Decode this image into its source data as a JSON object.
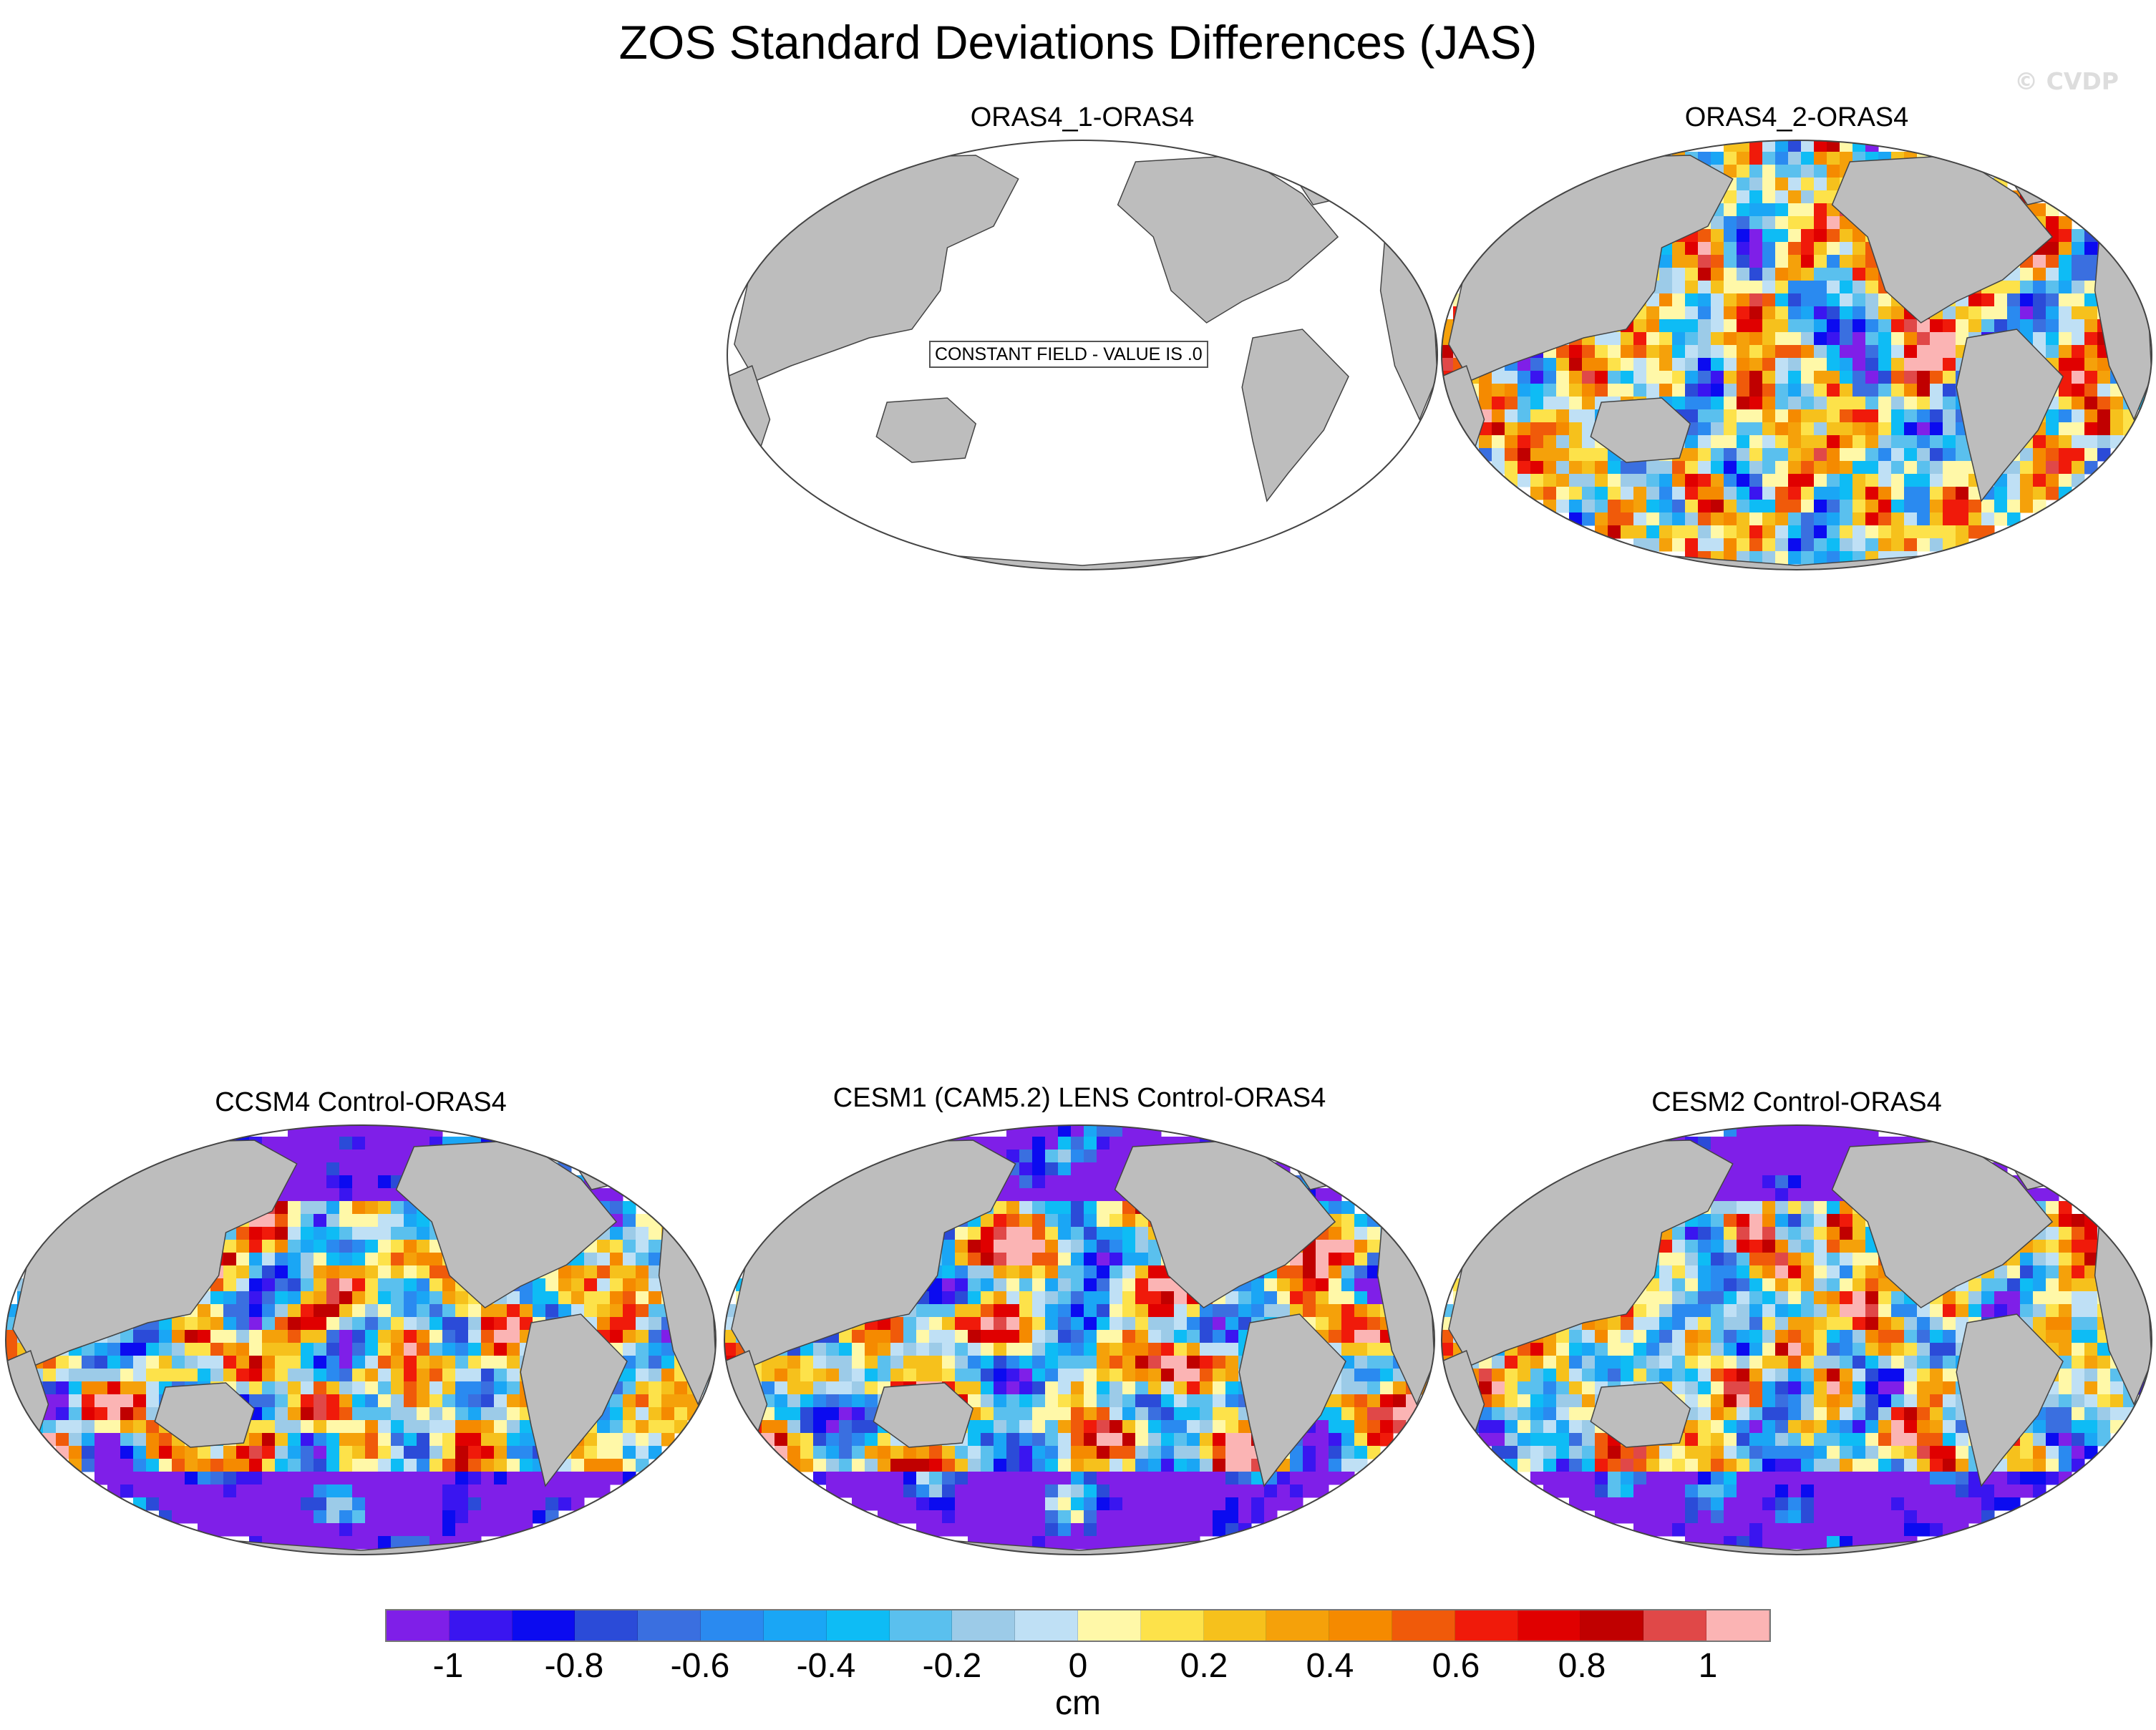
{
  "title": "ZOS Standard Deviations Differences (JAS)",
  "watermark": "© CVDP",
  "colors": {
    "land": "#bdbdbd",
    "ocean_empty": "#ffffff",
    "outline": "#444444"
  },
  "panels": [
    {
      "title": "ORAS4_1-ORAS4",
      "constant_field": true,
      "constant_label": "CONSTANT FIELD - VALUE IS .0",
      "pattern": "none"
    },
    {
      "title": "ORAS4_2-ORAS4",
      "constant_field": false,
      "pattern": "mixed"
    },
    {
      "title": "CCSM4 Control-ORAS4",
      "constant_field": false,
      "pattern": "strong"
    },
    {
      "title": "CESM1 (CAM5.2) LENS Control-ORAS4",
      "constant_field": false,
      "pattern": "strong"
    },
    {
      "title": "CESM2 Control-ORAS4",
      "constant_field": false,
      "pattern": "strong"
    }
  ],
  "colorbar": {
    "colors": [
      "#7f1fe8",
      "#3a15f0",
      "#0b0bf0",
      "#2b4bd8",
      "#3a6fe0",
      "#2a8af0",
      "#1aa6f5",
      "#0ebcf5",
      "#5ac0ee",
      "#9ccbe8",
      "#bfe0f5",
      "#fff8a8",
      "#fde24a",
      "#f6c11c",
      "#f5a10a",
      "#f58a00",
      "#f05a0a",
      "#f01a0a",
      "#e00000",
      "#c00000",
      "#e04848",
      "#fbb4b4"
    ],
    "tick_labels": [
      "-1",
      "-0.8",
      "-0.6",
      "-0.4",
      "-0.2",
      "0",
      "0.2",
      "0.4",
      "0.6",
      "0.8",
      "1"
    ],
    "units": "cm"
  }
}
